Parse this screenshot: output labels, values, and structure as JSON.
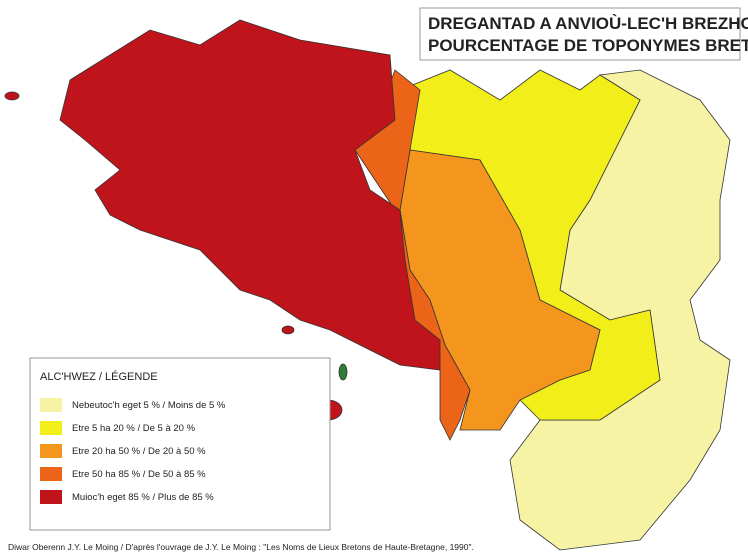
{
  "title": [
    "DREGANTAD A ANVIOÙ-LEC'H BREZHONEK",
    "POURCENTAGE DE TOPONYMES BRETONS"
  ],
  "legend": {
    "title": "ALC'HWEZ / LÉGENDE",
    "items": [
      {
        "label": "Nebeutoc'h eget 5 % / Moins de 5 %",
        "color": "#f7f3a5"
      },
      {
        "label": "Etre 5 ha 20 % / De 5 à 20 %",
        "color": "#f2ee1a"
      },
      {
        "label": "Etre 20 ha 50 % / De 20 à 50 %",
        "color": "#f4961e"
      },
      {
        "label": "Etre 50 ha 85 % / De 50 à 85 %",
        "color": "#ec6418"
      },
      {
        "label": "Muioc'h eget 85 % / Plus de 85 %",
        "color": "#c0141c"
      }
    ]
  },
  "credit": "Diwar Oberenn J.Y. Le Moing / D'après l'ouvrage de J.Y. Le Moing : \"Les Noms de Lieux Bretons de Haute-Bretagne, 1990\"."
}
